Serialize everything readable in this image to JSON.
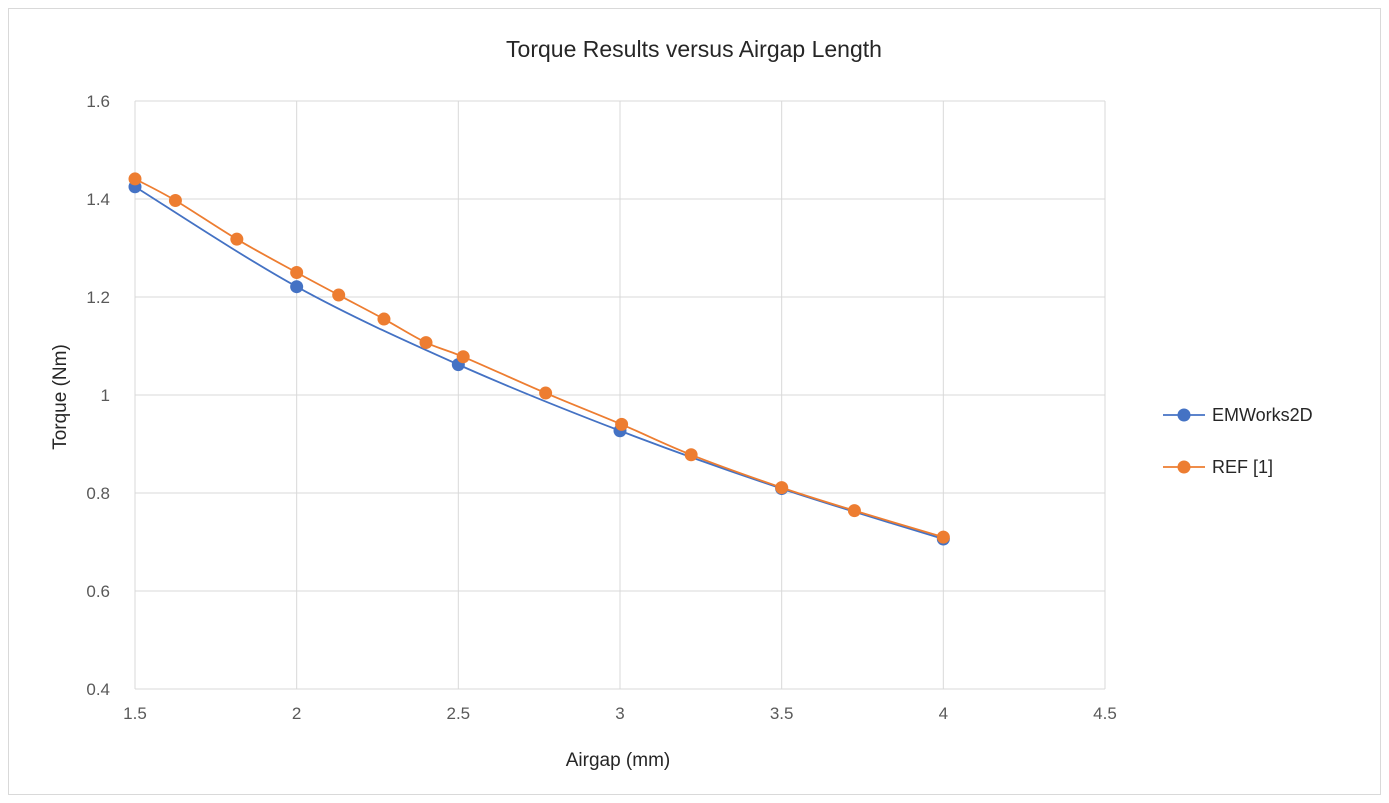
{
  "chart_data": {
    "type": "scatter",
    "title": "Torque  Results versus Airgap Length",
    "xlabel": "Airgap (mm)",
    "ylabel": "Torque (Nm)",
    "xlim": [
      1.5,
      4.5
    ],
    "ylim": [
      0.4,
      1.6
    ],
    "x_ticks": [
      "1.5",
      "2",
      "2.5",
      "3",
      "3.5",
      "4",
      "4.5"
    ],
    "y_ticks": [
      "0.4",
      "0.6",
      "0.8",
      "1",
      "1.2",
      "1.4",
      "1.6"
    ],
    "grid": true,
    "legend_position": "right",
    "line_style": "smooth lines with markers",
    "series": [
      {
        "name": "EMWorks2D",
        "color": "#4472c4",
        "points": [
          {
            "x": 1.5,
            "y": 1.425
          },
          {
            "x": 2.0,
            "y": 1.221
          },
          {
            "x": 2.5,
            "y": 1.062
          },
          {
            "x": 3.0,
            "y": 0.927
          },
          {
            "x": 3.5,
            "y": 0.809
          },
          {
            "x": 4.0,
            "y": 0.706
          }
        ]
      },
      {
        "name": "REF [1]",
        "color": "#ed7d31",
        "points": [
          {
            "x": 1.5,
            "y": 1.441
          },
          {
            "x": 1.625,
            "y": 1.397
          },
          {
            "x": 1.815,
            "y": 1.318
          },
          {
            "x": 2.0,
            "y": 1.25
          },
          {
            "x": 2.13,
            "y": 1.204
          },
          {
            "x": 2.27,
            "y": 1.155
          },
          {
            "x": 2.4,
            "y": 1.107
          },
          {
            "x": 2.515,
            "y": 1.078
          },
          {
            "x": 2.77,
            "y": 1.004
          },
          {
            "x": 3.005,
            "y": 0.94
          },
          {
            "x": 3.22,
            "y": 0.878
          },
          {
            "x": 3.5,
            "y": 0.811
          },
          {
            "x": 3.725,
            "y": 0.764
          },
          {
            "x": 4.0,
            "y": 0.71
          }
        ]
      }
    ]
  }
}
